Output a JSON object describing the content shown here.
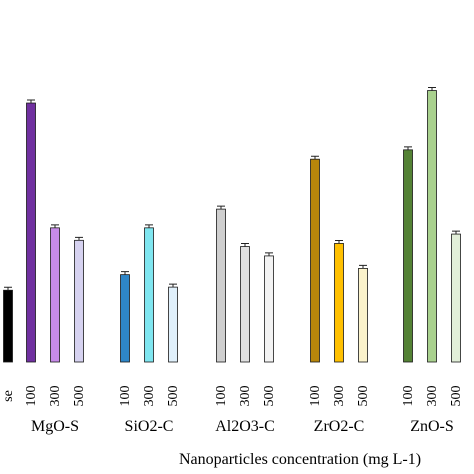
{
  "chart_data": {
    "type": "bar",
    "title": "",
    "xlabel": "Nanoparticles concentration (mg L-1)",
    "ylabel": "",
    "ylim": [
      0,
      100
    ],
    "grid": false,
    "legend": "none",
    "control": {
      "tick_label": "se",
      "value": 23,
      "color": "#000000"
    },
    "groups": [
      {
        "name": "MgO-S",
        "labels": [
          "100",
          "300",
          "500"
        ],
        "values": [
          83,
          43,
          39
        ],
        "colors": [
          "#7030a0",
          "#c78be8",
          "#d6d2f0"
        ]
      },
      {
        "name": "SiO2-C",
        "labels": [
          "100",
          "300",
          "500"
        ],
        "values": [
          28,
          43,
          24
        ],
        "colors": [
          "#2e86c8",
          "#7fe6f0",
          "#e0f0fb"
        ]
      },
      {
        "name": "Al2O3-C",
        "labels": [
          "100",
          "300",
          "500"
        ],
        "values": [
          49,
          37,
          34
        ],
        "colors": [
          "#cfcfcf",
          "#e1e1e1",
          "#f3f3f3"
        ]
      },
      {
        "name": "ZrO2-C",
        "labels": [
          "100",
          "300",
          "500"
        ],
        "values": [
          65,
          38,
          30
        ],
        "colors": [
          "#b8860b",
          "#ffc000",
          "#fbf3cc"
        ]
      },
      {
        "name": "ZnO-S",
        "labels": [
          "100",
          "300",
          "500"
        ],
        "values": [
          68,
          87,
          41
        ],
        "colors": [
          "#548235",
          "#a9d18e",
          "#e2efd9"
        ]
      }
    ]
  }
}
